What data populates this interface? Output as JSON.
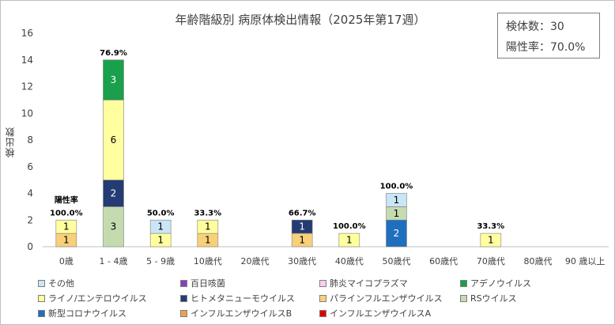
{
  "title": "年齢階級別 病原体検出情報（2025年第17週）",
  "summary": {
    "total_label": "検体数：30",
    "rate_label": "陽性率：70.0%"
  },
  "chart_data": {
    "type": "bar",
    "stacked": true,
    "title": "年齢階級別 病原体検出情報（2025年第17週）",
    "ylabel": "検出数",
    "xlabel": "",
    "ylim": [
      0,
      16
    ],
    "yticks": [
      0,
      2,
      4,
      6,
      8,
      10,
      12,
      14,
      16
    ],
    "grid": false,
    "legend_position": "bottom",
    "categories": [
      "0歳",
      "1 - 4歳",
      "5 - 9歳",
      "10歳代",
      "20歳代",
      "30歳代",
      "40歳代",
      "50歳代",
      "60歳代",
      "70歳代",
      "80歳代",
      "90 歳以上"
    ],
    "positivity_label": "陽性率",
    "positivity_rates": [
      "100.0%",
      "76.9%",
      "50.0%",
      "33.3%",
      "",
      "66.7%",
      "100.0%",
      "100.0%",
      "",
      "33.3%",
      "",
      ""
    ],
    "series": [
      {
        "name": "インフルエンザウイルスA",
        "color": "#e00000",
        "values": [
          0,
          0,
          0,
          0,
          0,
          0,
          0,
          0,
          0,
          0,
          0,
          0
        ]
      },
      {
        "name": "インフルエンザウイルスB",
        "color": "#f0a050",
        "values": [
          0,
          0,
          0,
          0,
          0,
          0,
          0,
          0,
          0,
          0,
          0,
          0
        ]
      },
      {
        "name": "新型コロナウイルス",
        "color": "#1f6fbf",
        "values": [
          0,
          0,
          0,
          0,
          0,
          0,
          0,
          2,
          0,
          0,
          0,
          0
        ]
      },
      {
        "name": "RSウイルス",
        "color": "#c4dbb0",
        "values": [
          0,
          3,
          0,
          0,
          0,
          0,
          0,
          1,
          0,
          0,
          0,
          0
        ]
      },
      {
        "name": "パラインフルエンザウイルス",
        "color": "#f9d07a",
        "values": [
          1,
          0,
          0,
          1,
          0,
          1,
          0,
          0,
          0,
          0,
          0,
          0
        ]
      },
      {
        "name": "ヒトメタニューモウイルス",
        "color": "#243c73",
        "values": [
          0,
          2,
          0,
          0,
          0,
          1,
          0,
          0,
          0,
          0,
          0,
          0
        ]
      },
      {
        "name": "ライノ/エンテロウイルス",
        "color": "#ffffa0",
        "values": [
          1,
          6,
          1,
          1,
          0,
          0,
          1,
          0,
          0,
          1,
          0,
          0
        ]
      },
      {
        "name": "アデノウイルス",
        "color": "#1aa04c",
        "values": [
          0,
          3,
          0,
          0,
          0,
          0,
          0,
          0,
          0,
          0,
          0,
          0
        ]
      },
      {
        "name": "肺炎マイコプラズマ",
        "color": "#f8d0ec",
        "values": [
          0,
          0,
          0,
          0,
          0,
          0,
          0,
          0,
          0,
          0,
          0,
          0
        ]
      },
      {
        "name": "百日咳菌",
        "color": "#8a3fbf",
        "values": [
          0,
          0,
          0,
          0,
          0,
          0,
          0,
          0,
          0,
          0,
          0,
          0
        ]
      },
      {
        "name": "その他",
        "color": "#c9e5f6",
        "values": [
          0,
          0,
          1,
          0,
          0,
          0,
          0,
          1,
          0,
          0,
          0,
          0
        ]
      }
    ],
    "legend_order": [
      "その他",
      "百日咳菌",
      "肺炎マイコプラズマ",
      "アデノウイルス",
      "ライノ/エンテロウイルス",
      "ヒトメタニューモウイルス",
      "パラインフルエンザウイルス",
      "RSウイルス",
      "新型コロナウイルス",
      "インフルエンザウイルスB",
      "インフルエンザウイルスA"
    ]
  }
}
